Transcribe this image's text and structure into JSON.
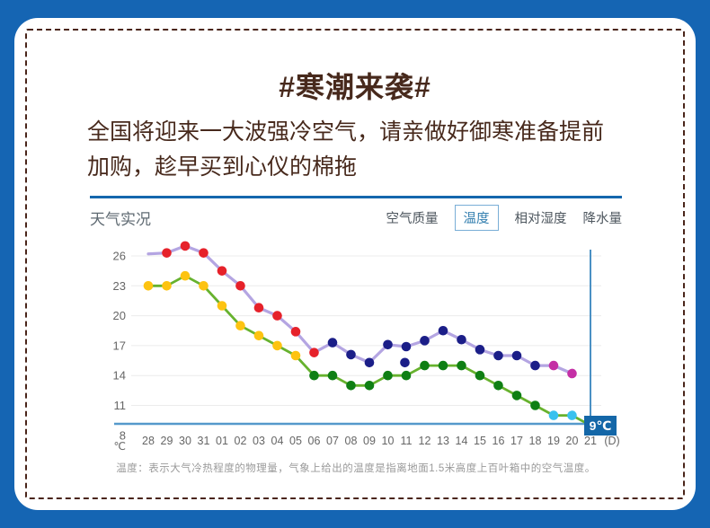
{
  "title": "#寒潮来袭#",
  "subtitle_lines": [
    "全国将迎来一大波强冷空气，请亲做好御寒准备提前",
    "加购，趁早买到心仪的棉拖"
  ],
  "weather_widget": {
    "section_title": "天气实况",
    "tabs": [
      {
        "id": "air-quality",
        "label": "空气质量",
        "selected": false
      },
      {
        "id": "temperature",
        "label": "温度",
        "selected": true
      },
      {
        "id": "relative-humidity",
        "label": "相对湿度",
        "selected": false
      },
      {
        "id": "precipitation",
        "label": "降水量",
        "selected": false
      }
    ],
    "caption": "温度：表示大气冷热程度的物理量，气象上给出的温度是指离地面1.5米高度上百叶箱中的空气温度。"
  },
  "chart_data": {
    "type": "line",
    "title": "",
    "xlabel_suffix": "(D)",
    "ylabel_unit": "℃",
    "ylim": [
      8,
      28
    ],
    "y_ticks": [
      26,
      23,
      20,
      17,
      14,
      11,
      8
    ],
    "grid": true,
    "categories": [
      "28",
      "29",
      "30",
      "31",
      "01",
      "02",
      "03",
      "04",
      "05",
      "06",
      "07",
      "08",
      "09",
      "10",
      "11",
      "12",
      "13",
      "14",
      "15",
      "16",
      "17",
      "18",
      "19",
      "20",
      "21"
    ],
    "series": [
      {
        "name": "high",
        "line_color": "#b4a5e2",
        "values": [
          26.2,
          26.3,
          27,
          26.3,
          24.5,
          23,
          20.8,
          20,
          18.4,
          16.3,
          17.3,
          16.1,
          15.3,
          17.1,
          16.9,
          17.5,
          18.5,
          17.6,
          16.6,
          16,
          16,
          15,
          15,
          14.2,
          null
        ],
        "point_colors": [
          "none",
          "red",
          "red",
          "red",
          "red",
          "red",
          "red",
          "red",
          "red",
          "red",
          "navy",
          "navy",
          "navy",
          "navy",
          "navy",
          "navy",
          "navy",
          "navy",
          "navy",
          "navy",
          "navy",
          "navy",
          "magenta",
          "magenta",
          "none"
        ]
      },
      {
        "name": "low",
        "line_color": "#67b22e",
        "values": [
          23,
          23,
          24,
          23,
          21,
          19,
          18,
          17,
          16,
          14,
          14,
          13,
          13,
          14,
          14,
          15,
          15,
          15,
          14,
          13,
          12,
          11,
          10,
          10,
          9
        ],
        "point_colors": [
          "gold",
          "gold",
          "gold",
          "gold",
          "gold",
          "gold",
          "gold",
          "gold",
          "gold",
          "green",
          "green",
          "green",
          "green",
          "green",
          "green",
          "green",
          "green",
          "green",
          "green",
          "green",
          "green",
          "green",
          "cyan",
          "cyan",
          "none"
        ]
      }
    ],
    "isolated_point": {
      "category": "11",
      "value": 15.3,
      "color": "navy"
    },
    "selected_point": {
      "category": "21",
      "value": 9,
      "label": "9℃"
    },
    "palette": {
      "red": "#e6212a",
      "navy": "#1b1e88",
      "magenta": "#c42fa5",
      "gold": "#fdc311",
      "green": "#0f7f14",
      "cyan": "#38c1ef",
      "grid": "#ececec",
      "axis_blue": "#5599cc",
      "cursor_line": "#4a90c4",
      "badge_bg": "#1467a8",
      "tick_text": "#666666"
    }
  },
  "frame": {
    "outer_color": "#1565b3",
    "dash_color": "#4a251a"
  }
}
